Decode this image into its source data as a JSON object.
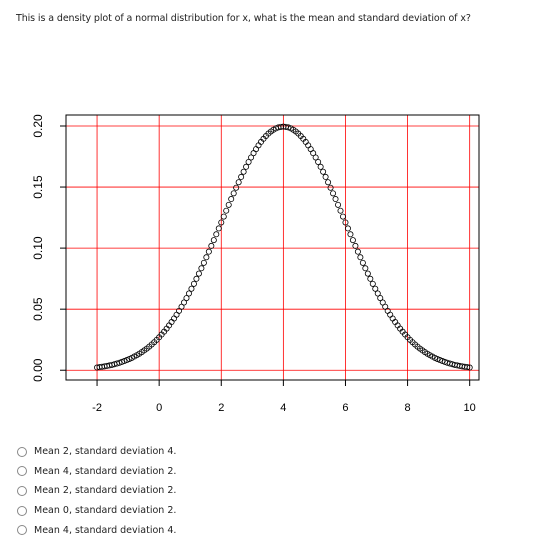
{
  "question": {
    "text": "This is a density plot of a normal distribution for x, what is the mean and standard deviation of x?"
  },
  "chart_data": {
    "type": "scatter",
    "title": "",
    "xlabel": "",
    "ylabel": "",
    "xlim": [
      -3,
      10.3
    ],
    "ylim": [
      -0.008,
      0.209
    ],
    "x_ticks": [
      "-2",
      "0",
      "2",
      "4",
      "6",
      "8",
      "10"
    ],
    "x_tick_values": [
      -2,
      0,
      2,
      4,
      6,
      8,
      10
    ],
    "y_ticks": [
      "0.00",
      "0.05",
      "0.10",
      "0.15",
      "0.20"
    ],
    "y_tick_values": [
      0,
      0.05,
      0.1,
      0.15,
      0.2
    ],
    "grid": true,
    "grid_color": "#ff0000",
    "point_color": "#000000",
    "series": [
      {
        "curve": "normal-density",
        "mean": 4,
        "sd": 2,
        "x_from": -2,
        "x_to": 10,
        "x_step": 0.08
      }
    ]
  },
  "options": [
    {
      "label": "Mean 2, standard deviation 4."
    },
    {
      "label": "Mean 4, standard deviation 2."
    },
    {
      "label": "Mean 2, standard deviation 2."
    },
    {
      "label": "Mean 0, standard deviation 2."
    },
    {
      "label": "Mean 4, standard deviation 4."
    }
  ]
}
